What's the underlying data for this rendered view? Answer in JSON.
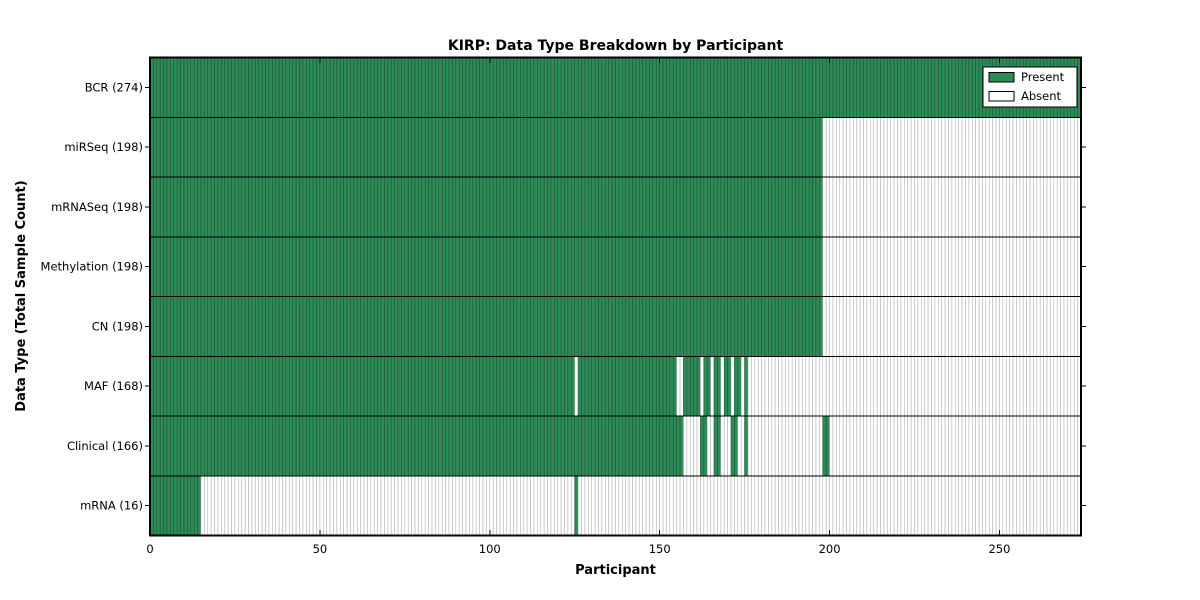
{
  "chart_data": {
    "type": "heatmap",
    "title": "KIRP: Data Type Breakdown by Participant",
    "xlabel": "Participant",
    "ylabel": "Data Type (Total Sample Count)",
    "x_ticks": [
      0,
      50,
      100,
      150,
      200,
      250
    ],
    "xlim": [
      0,
      274
    ],
    "n_participants": 274,
    "grid": false,
    "legend_position": "upper-right",
    "legend": [
      {
        "label": "Present",
        "color": "#2e8b57"
      },
      {
        "label": "Absent",
        "color": "#ffffff"
      }
    ],
    "colors": {
      "present_fill": "#2e8b57",
      "present_edge": "#1b5737",
      "absent_fill": "#ffffff",
      "absent_edge": "#b3b3b3",
      "separator": "#000000",
      "frame": "#000000"
    },
    "rows": [
      {
        "label": "BCR (274)",
        "name": "BCR",
        "total": 274,
        "present_ranges": [
          [
            0,
            273
          ]
        ]
      },
      {
        "label": "miRSeq (198)",
        "name": "miRSeq",
        "total": 198,
        "present_ranges": [
          [
            0,
            197
          ]
        ]
      },
      {
        "label": "mRNASeq (198)",
        "name": "mRNASeq",
        "total": 198,
        "present_ranges": [
          [
            0,
            197
          ]
        ]
      },
      {
        "label": "Methylation (198)",
        "name": "Methylation",
        "total": 198,
        "present_ranges": [
          [
            0,
            197
          ]
        ]
      },
      {
        "label": "CN (198)",
        "name": "CN",
        "total": 198,
        "present_ranges": [
          [
            0,
            197
          ]
        ]
      },
      {
        "label": "MAF (168)",
        "name": "MAF",
        "total": 168,
        "present_ranges": [
          [
            0,
            124
          ],
          [
            126,
            154
          ],
          [
            157,
            161
          ],
          [
            163,
            164
          ],
          [
            166,
            167
          ],
          [
            169,
            170
          ],
          [
            172,
            173
          ],
          [
            175,
            175
          ]
        ]
      },
      {
        "label": "Clinical (166)",
        "name": "Clinical",
        "total": 166,
        "present_ranges": [
          [
            0,
            156
          ],
          [
            162,
            163
          ],
          [
            166,
            167
          ],
          [
            171,
            172
          ],
          [
            175,
            175
          ],
          [
            198,
            199
          ]
        ]
      },
      {
        "label": "mRNA (16)",
        "name": "mRNA",
        "total": 16,
        "present_ranges": [
          [
            0,
            14
          ],
          [
            125,
            125
          ]
        ]
      }
    ]
  }
}
